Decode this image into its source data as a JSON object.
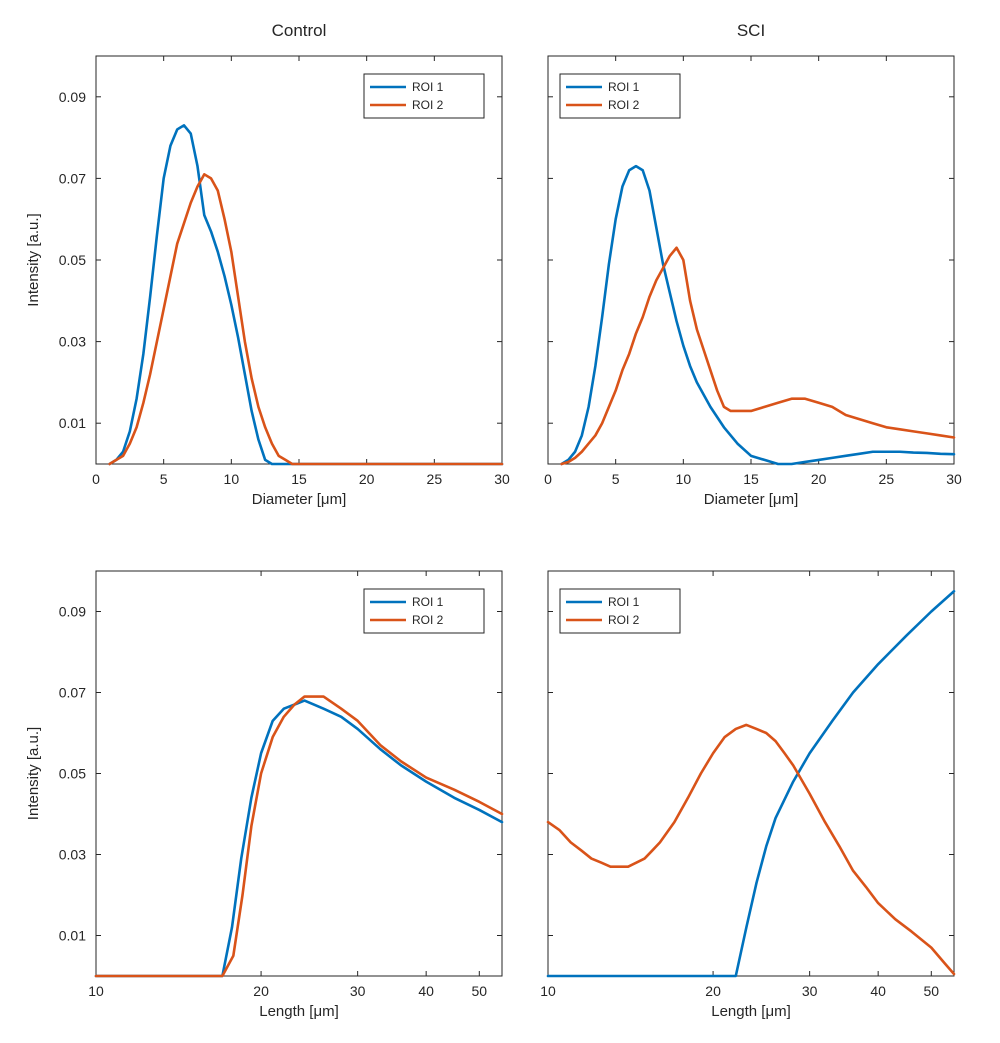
{
  "colors": {
    "roi1": "#0072BD",
    "roi2": "#D95319",
    "axis": "#262626",
    "text": "#262626"
  },
  "chart_data": [
    {
      "id": "control-diameter",
      "type": "line",
      "title": "Control",
      "xlabel": "Diameter [μm]",
      "ylabel": "Intensity [a.u.]",
      "xscale": "linear",
      "xlim": [
        0,
        30
      ],
      "ylim": [
        0,
        0.1
      ],
      "xticks": [
        0,
        5,
        10,
        15,
        20,
        25,
        30
      ],
      "xtick_labels": [
        "0",
        "5",
        "10",
        "15",
        "20",
        "25",
        "30"
      ],
      "yticks": [
        0.01,
        0.03,
        0.05,
        0.07,
        0.09
      ],
      "ytick_labels": [
        "0.01",
        "0.03",
        "0.05",
        "0.07",
        "0.09"
      ],
      "legend": "top-right",
      "series": [
        {
          "name": "ROI 1",
          "color": "#0072BD",
          "x": [
            1,
            1.5,
            2,
            2.5,
            3,
            3.5,
            4,
            4.5,
            5,
            5.5,
            6,
            6.5,
            7,
            7.5,
            8,
            8.5,
            9,
            9.5,
            10,
            10.5,
            11,
            11.5,
            12,
            12.5,
            13,
            13.5,
            14,
            20,
            30
          ],
          "y": [
            0,
            0.001,
            0.003,
            0.008,
            0.016,
            0.027,
            0.041,
            0.056,
            0.07,
            0.078,
            0.082,
            0.083,
            0.081,
            0.073,
            0.061,
            0.057,
            0.052,
            0.046,
            0.039,
            0.031,
            0.022,
            0.013,
            0.006,
            0.001,
            0,
            0,
            0,
            0,
            0
          ]
        },
        {
          "name": "ROI 2",
          "color": "#D95319",
          "x": [
            1,
            1.5,
            2,
            2.5,
            3,
            3.5,
            4,
            4.5,
            5,
            5.5,
            6,
            6.5,
            7,
            7.5,
            8,
            8.5,
            9,
            9.5,
            10,
            10.5,
            11,
            11.5,
            12,
            12.5,
            13,
            13.5,
            14,
            14.5,
            15,
            15.5,
            16,
            16.5,
            17,
            20,
            30
          ],
          "y": [
            0,
            0.001,
            0.002,
            0.005,
            0.009,
            0.015,
            0.022,
            0.03,
            0.038,
            0.046,
            0.054,
            0.059,
            0.064,
            0.068,
            0.071,
            0.07,
            0.067,
            0.06,
            0.052,
            0.041,
            0.03,
            0.021,
            0.014,
            0.009,
            0.005,
            0.002,
            0.001,
            0,
            0,
            0,
            0,
            0,
            0,
            0,
            0
          ]
        }
      ]
    },
    {
      "id": "sci-diameter",
      "type": "line",
      "title": "SCI",
      "xlabel": "Diameter [μm]",
      "ylabel": "",
      "xscale": "linear",
      "xlim": [
        0,
        30
      ],
      "ylim": [
        0,
        0.1
      ],
      "xticks": [
        0,
        5,
        10,
        15,
        20,
        25,
        30
      ],
      "xtick_labels": [
        "0",
        "5",
        "10",
        "15",
        "20",
        "25",
        "30"
      ],
      "yticks": [
        0.01,
        0.03,
        0.05,
        0.07,
        0.09
      ],
      "ytick_labels": [],
      "legend": "top-left",
      "series": [
        {
          "name": "ROI 1",
          "color": "#0072BD",
          "x": [
            1,
            1.5,
            2,
            2.5,
            3,
            3.5,
            4,
            4.5,
            5,
            5.5,
            6,
            6.5,
            7,
            7.5,
            8,
            8.5,
            9,
            9.5,
            10,
            10.5,
            11,
            12,
            13,
            14,
            15,
            16,
            17,
            18,
            19,
            20,
            21,
            22,
            23,
            24,
            25,
            26,
            27,
            28,
            29,
            30
          ],
          "y": [
            0,
            0.001,
            0.003,
            0.007,
            0.014,
            0.024,
            0.036,
            0.049,
            0.06,
            0.068,
            0.072,
            0.073,
            0.072,
            0.067,
            0.058,
            0.049,
            0.042,
            0.035,
            0.029,
            0.024,
            0.02,
            0.014,
            0.009,
            0.005,
            0.002,
            0.001,
            0,
            0,
            0.0005,
            0.001,
            0.0015,
            0.002,
            0.0025,
            0.003,
            0.003,
            0.003,
            0.0028,
            0.0027,
            0.0025,
            0.0024
          ]
        },
        {
          "name": "ROI 2",
          "color": "#D95319",
          "x": [
            1,
            1.5,
            2,
            2.5,
            3,
            3.5,
            4,
            4.5,
            5,
            5.5,
            6,
            6.5,
            7,
            7.5,
            8,
            8.5,
            9,
            9.5,
            10,
            10.5,
            11,
            11.5,
            12,
            12.5,
            13,
            13.5,
            14,
            14.5,
            15,
            16,
            17,
            18,
            19,
            20,
            21,
            22,
            23,
            24,
            25,
            26,
            27,
            28,
            29,
            30
          ],
          "y": [
            0,
            0.0005,
            0.0015,
            0.003,
            0.005,
            0.007,
            0.01,
            0.014,
            0.018,
            0.023,
            0.027,
            0.032,
            0.036,
            0.041,
            0.045,
            0.048,
            0.051,
            0.053,
            0.05,
            0.04,
            0.033,
            0.028,
            0.023,
            0.018,
            0.014,
            0.013,
            0.013,
            0.013,
            0.013,
            0.014,
            0.015,
            0.016,
            0.016,
            0.015,
            0.014,
            0.012,
            0.011,
            0.01,
            0.009,
            0.0085,
            0.008,
            0.0075,
            0.007,
            0.0065
          ]
        }
      ]
    },
    {
      "id": "control-length",
      "type": "line",
      "title": "",
      "xlabel": "Length [μm]",
      "ylabel": "Intensity [a.u.]",
      "xscale": "log",
      "xlim": [
        10,
        55
      ],
      "ylim": [
        0,
        0.1
      ],
      "xticks": [
        10,
        20,
        30,
        40,
        50
      ],
      "xtick_labels": [
        "10",
        "20",
        "30",
        "40",
        "50"
      ],
      "yticks": [
        0.01,
        0.03,
        0.05,
        0.07,
        0.09
      ],
      "ytick_labels": [
        "0.01",
        "0.03",
        "0.05",
        "0.07",
        "0.09"
      ],
      "legend": "top-right",
      "series": [
        {
          "name": "ROI 1",
          "color": "#0072BD",
          "x": [
            10,
            12,
            15,
            17,
            17.7,
            18.4,
            19.2,
            20,
            21,
            22,
            23,
            24,
            25,
            26,
            28,
            30,
            33,
            36,
            40,
            45,
            50,
            55
          ],
          "y": [
            0,
            0,
            0,
            0,
            0.012,
            0.029,
            0.044,
            0.055,
            0.063,
            0.066,
            0.067,
            0.068,
            0.067,
            0.066,
            0.064,
            0.061,
            0.056,
            0.052,
            0.048,
            0.044,
            0.041,
            0.038
          ]
        },
        {
          "name": "ROI 2",
          "color": "#D95319",
          "x": [
            10,
            12,
            15,
            17,
            17.8,
            18.5,
            19.2,
            20,
            21,
            22,
            23,
            24,
            25,
            26,
            28,
            30,
            33,
            36,
            40,
            45,
            50,
            55
          ],
          "y": [
            0,
            0,
            0,
            0,
            0.005,
            0.02,
            0.037,
            0.05,
            0.059,
            0.064,
            0.067,
            0.069,
            0.069,
            0.069,
            0.066,
            0.063,
            0.057,
            0.053,
            0.049,
            0.046,
            0.043,
            0.04
          ]
        }
      ]
    },
    {
      "id": "sci-length",
      "type": "line",
      "title": "",
      "xlabel": "Length [μm]",
      "ylabel": "",
      "xscale": "log",
      "xlim": [
        10,
        55
      ],
      "ylim": [
        0,
        0.1
      ],
      "xticks": [
        10,
        20,
        30,
        40,
        50
      ],
      "xtick_labels": [
        "10",
        "20",
        "30",
        "40",
        "50"
      ],
      "yticks": [
        0.01,
        0.03,
        0.05,
        0.07,
        0.09
      ],
      "ytick_labels": [],
      "legend": "top-left",
      "series": [
        {
          "name": "ROI 1",
          "color": "#0072BD",
          "x": [
            10,
            15,
            20,
            22,
            23,
            24,
            25,
            26,
            28,
            30,
            33,
            36,
            40,
            45,
            50,
            55
          ],
          "y": [
            0,
            0,
            0,
            0,
            0.012,
            0.023,
            0.032,
            0.039,
            0.048,
            0.055,
            0.063,
            0.07,
            0.077,
            0.084,
            0.09,
            0.095
          ]
        },
        {
          "name": "ROI 2",
          "color": "#D95319",
          "x": [
            10,
            10.5,
            11,
            11.5,
            12,
            12.5,
            13,
            13.5,
            14,
            14.5,
            15,
            15.5,
            16,
            17,
            18,
            19,
            20,
            21,
            22,
            23,
            24,
            25,
            26,
            27,
            28,
            30,
            32,
            34,
            36,
            38,
            40,
            43,
            46,
            50,
            53,
            55
          ],
          "y": [
            0.038,
            0.036,
            0.033,
            0.031,
            0.029,
            0.028,
            0.027,
            0.027,
            0.027,
            0.028,
            0.029,
            0.031,
            0.033,
            0.038,
            0.044,
            0.05,
            0.055,
            0.059,
            0.061,
            0.062,
            0.061,
            0.06,
            0.058,
            0.055,
            0.052,
            0.045,
            0.038,
            0.032,
            0.026,
            0.022,
            0.018,
            0.014,
            0.011,
            0.007,
            0.003,
            0.0005
          ]
        }
      ]
    }
  ]
}
